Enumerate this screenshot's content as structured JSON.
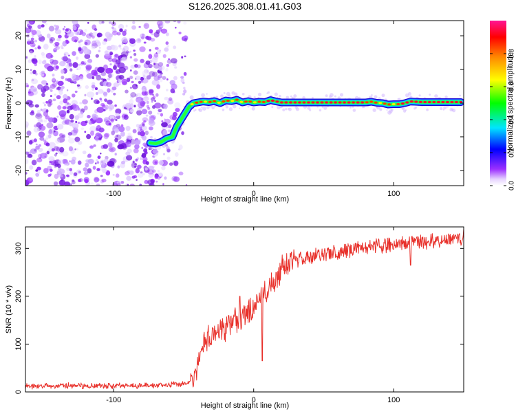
{
  "title": "S126.2025.308.01.41.G03",
  "chart_data": [
    {
      "id": "spectrogram",
      "type": "heatmap",
      "xlabel": "Height of straight line (km)",
      "ylabel": "Frequency (Hz)",
      "xlim": [
        -163,
        150
      ],
      "ylim": [
        -24.5,
        24.5
      ],
      "xticks": [
        -100,
        0,
        100
      ],
      "yticks": [
        20,
        10,
        0,
        -10,
        -20
      ],
      "ridge": {
        "x": [
          -74,
          -70,
          -66,
          -62,
          -58,
          -55,
          -52,
          -49,
          -46,
          -43,
          -40,
          -36,
          -32,
          -28,
          -24,
          -20,
          -16,
          -12,
          -8,
          -4,
          0,
          4,
          8,
          12,
          16,
          20,
          30,
          40,
          50,
          60,
          70,
          80,
          84,
          88,
          92,
          96,
          100,
          104,
          108,
          112,
          120,
          130,
          140,
          148
        ],
        "y": [
          -11.8,
          -12.0,
          -11.5,
          -10.5,
          -10.0,
          -7.0,
          -5.0,
          -3.0,
          -1.0,
          0.0,
          0.2,
          0.5,
          0.3,
          0.6,
          0.0,
          0.8,
          0.6,
          1.0,
          0.2,
          0.6,
          0.2,
          0.4,
          0.3,
          0.9,
          0.5,
          0.2,
          0.2,
          0.2,
          0.2,
          0.2,
          0.2,
          0.2,
          0.4,
          0.1,
          0.0,
          -0.4,
          -0.3,
          -0.3,
          0.0,
          0.5,
          0.3,
          0.3,
          0.3,
          0.3
        ]
      },
      "noise_region_x": [
        -163,
        -52
      ],
      "colorbar": {
        "label": "Normalized spectral amplitude",
        "range": [
          0,
          1
        ],
        "ticks": [
          0.0,
          0.2,
          0.4,
          0.6,
          0.8
        ],
        "tick_labels": [
          "0.0",
          "0.2",
          "0.4",
          "0.6",
          "0.8"
        ]
      }
    },
    {
      "id": "snr",
      "type": "line",
      "xlabel": "Height of straight line (km)",
      "ylabel": "SNR (10 * v/v)",
      "xlim": [
        -163,
        150
      ],
      "ylim": [
        0,
        345
      ],
      "xticks": [
        -100,
        0,
        100
      ],
      "yticks": [
        0,
        100,
        200,
        300
      ],
      "color": "#e8302a",
      "series": [
        {
          "name": "SNR",
          "x": [
            -163,
            -150,
            -130,
            -110,
            -90,
            -70,
            -60,
            -50,
            -45,
            -42,
            -40,
            -38,
            -36,
            -34,
            -32,
            -30,
            -28,
            -26,
            -24,
            -22,
            -20,
            -18,
            -16,
            -14,
            -12,
            -10,
            -8,
            -6,
            -4,
            -2,
            0,
            2,
            4,
            6,
            8,
            10,
            12,
            14,
            16,
            18,
            20,
            22,
            24,
            26,
            28,
            30,
            35,
            40,
            45,
            50,
            55,
            60,
            65,
            70,
            75,
            80,
            85,
            90,
            95,
            100,
            105,
            110,
            115,
            120,
            125,
            130,
            135,
            140,
            145,
            150
          ],
          "y": [
            12,
            12,
            13,
            12,
            13,
            14,
            15,
            17,
            22,
            35,
            55,
            85,
            100,
            110,
            115,
            120,
            122,
            125,
            130,
            132,
            130,
            135,
            140,
            145,
            148,
            150,
            155,
            160,
            165,
            170,
            175,
            185,
            190,
            200,
            210,
            215,
            225,
            235,
            242,
            248,
            255,
            262,
            268,
            272,
            274,
            276,
            278,
            282,
            285,
            288,
            290,
            292,
            295,
            298,
            300,
            302,
            304,
            306,
            308,
            310,
            311,
            312,
            313,
            314,
            315,
            316,
            317,
            318,
            320,
            320
          ]
        }
      ],
      "spikes": [
        {
          "x": -33,
          "y": 125
        },
        {
          "x": -18,
          "y": 160
        },
        {
          "x": -10,
          "y": 200
        },
        {
          "x": 6,
          "y": 65
        },
        {
          "x": 16,
          "y": 250
        },
        {
          "x": 112,
          "y": 265
        },
        {
          "x": 150,
          "y": 340
        }
      ]
    }
  ]
}
